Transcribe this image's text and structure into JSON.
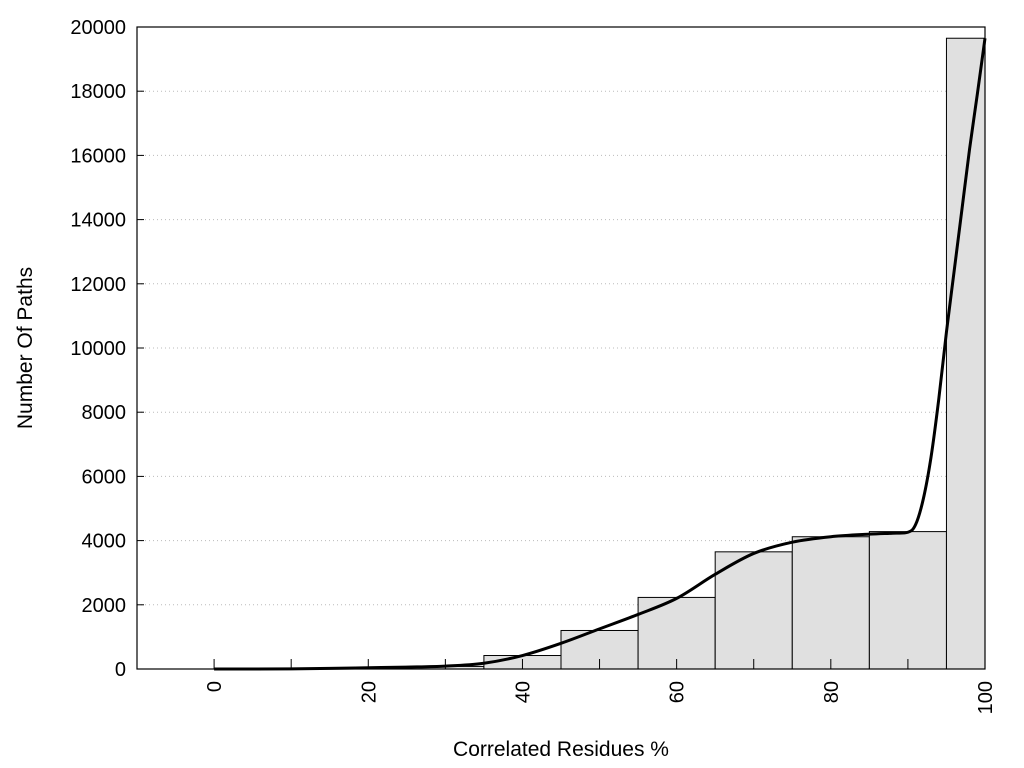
{
  "chart_data": {
    "type": "bar",
    "xlabel": "Correlated Residues %",
    "ylabel": "Number Of Paths",
    "xlim": [
      -10,
      100
    ],
    "ylim": [
      0,
      20000
    ],
    "x_ticks": [
      0,
      20,
      40,
      60,
      80,
      100
    ],
    "y_ticks": [
      0,
      2000,
      4000,
      6000,
      8000,
      10000,
      12000,
      14000,
      16000,
      18000,
      20000
    ],
    "grid": "horizontal dotted",
    "bins": [
      {
        "from": 0,
        "to": 5,
        "value": 0
      },
      {
        "from": 5,
        "to": 15,
        "value": 10
      },
      {
        "from": 15,
        "to": 25,
        "value": 30
      },
      {
        "from": 25,
        "to": 35,
        "value": 80
      },
      {
        "from": 35,
        "to": 45,
        "value": 420
      },
      {
        "from": 45,
        "to": 55,
        "value": 1200
      },
      {
        "from": 55,
        "to": 65,
        "value": 2230
      },
      {
        "from": 65,
        "to": 75,
        "value": 3650
      },
      {
        "from": 75,
        "to": 85,
        "value": 4120
      },
      {
        "from": 85,
        "to": 95,
        "value": 4280
      },
      {
        "from": 95,
        "to": 100,
        "value": 19650
      }
    ],
    "curve": {
      "x": [
        0,
        5,
        10,
        15,
        20,
        25,
        30,
        35,
        40,
        45,
        50,
        55,
        60,
        65,
        70,
        75,
        80,
        85,
        88,
        90,
        91,
        92,
        93,
        94,
        95,
        96,
        97,
        98,
        99,
        100
      ],
      "y": [
        0,
        0,
        5,
        20,
        40,
        60,
        90,
        180,
        420,
        800,
        1250,
        1700,
        2200,
        2950,
        3600,
        3950,
        4120,
        4200,
        4230,
        4260,
        4500,
        5300,
        6600,
        8400,
        10500,
        12400,
        14300,
        16200,
        17900,
        19650
      ]
    },
    "colors": {
      "bar_fill": "#e0e0e0",
      "bar_stroke": "#000000",
      "curve": "#000000",
      "grid": "#bbbbbb"
    }
  }
}
